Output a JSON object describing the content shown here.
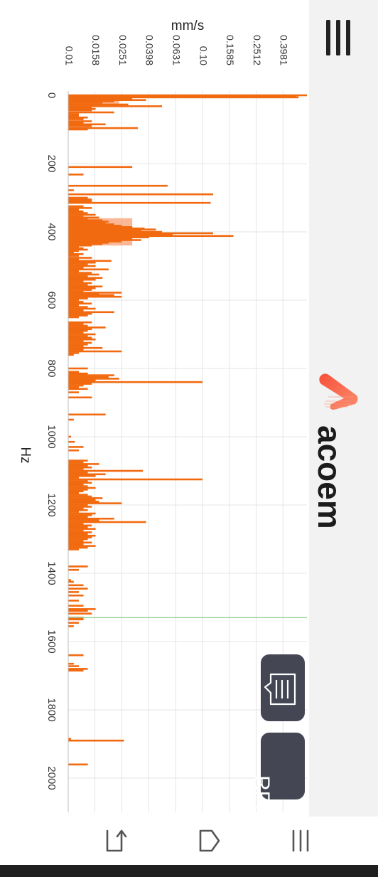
{
  "app": {
    "brand": "acoem"
  },
  "buttons": {
    "rpm_label": "RPM"
  },
  "icons": {
    "menu": "menu-icon",
    "note": "note-icon",
    "nav_back": "back-icon",
    "nav_home": "home-icon",
    "nav_recent": "recent-apps-icon"
  },
  "colors": {
    "bar": "#f26a10",
    "band": "#f8a073",
    "grid": "#e4e4e4",
    "cursor": "#8fcf8f",
    "pill": "#444654"
  },
  "chart_data": {
    "type": "bar",
    "orientation": "horizontal",
    "xlabel": "Hz",
    "ylabel": "mm/s",
    "x_ticks": [
      0,
      200,
      400,
      600,
      800,
      1000,
      1200,
      1400,
      1600,
      1800,
      2000
    ],
    "y_ticks": [
      "0.01",
      "0.0158",
      "0.0251",
      "0.0398",
      "0.0631",
      "0.10",
      "0.1585",
      "0.2512",
      "0.3981"
    ],
    "y_tick_values": [
      0.01,
      0.0158,
      0.0251,
      0.0398,
      0.0631,
      0.1,
      0.1585,
      0.2512,
      0.3981
    ],
    "xlim": [
      0,
      2100
    ],
    "ylim": [
      0.01,
      0.6
    ],
    "y_scale": "log",
    "cursor_hz": 1530,
    "series": [
      {
        "points": [
          [
            0,
            0.6
          ],
          [
            3,
            0.5
          ],
          [
            6,
            0.52
          ],
          [
            10,
            0.03
          ],
          [
            14,
            0.038
          ],
          [
            18,
            0.022
          ],
          [
            22,
            0.018
          ],
          [
            27,
            0.028
          ],
          [
            32,
            0.05
          ],
          [
            36,
            0.015
          ],
          [
            40,
            0.016
          ],
          [
            44,
            0.015
          ],
          [
            50,
            0.022
          ],
          [
            55,
            0.012
          ],
          [
            60,
            0.012
          ],
          [
            65,
            0.014
          ],
          [
            70,
            0.013
          ],
          [
            76,
            0.015
          ],
          [
            80,
            0.013
          ],
          [
            85,
            0.019
          ],
          [
            90,
            0.015
          ],
          [
            96,
            0.033
          ],
          [
            100,
            0.014
          ],
          [
            210,
            0.03
          ],
          [
            232,
            0.013
          ],
          [
            265,
            0.055
          ],
          [
            278,
            0.011
          ],
          [
            290,
            0.12
          ],
          [
            300,
            0.014
          ],
          [
            305,
            0.015
          ],
          [
            310,
            0.015
          ],
          [
            315,
            0.115
          ],
          [
            325,
            0.013
          ],
          [
            330,
            0.015
          ],
          [
            335,
            0.012
          ],
          [
            340,
            0.013
          ],
          [
            345,
            0.014
          ],
          [
            350,
            0.016
          ],
          [
            355,
            0.013
          ],
          [
            358,
            0.017
          ],
          [
            362,
            0.014
          ],
          [
            366,
            0.018
          ],
          [
            370,
            0.02
          ],
          [
            374,
            0.019
          ],
          [
            378,
            0.022
          ],
          [
            382,
            0.025
          ],
          [
            386,
            0.03
          ],
          [
            390,
            0.037
          ],
          [
            393,
            0.045
          ],
          [
            397,
            0.035
          ],
          [
            400,
            0.05
          ],
          [
            404,
            0.12
          ],
          [
            408,
            0.06
          ],
          [
            412,
            0.17
          ],
          [
            416,
            0.04
          ],
          [
            420,
            0.03
          ],
          [
            424,
            0.035
          ],
          [
            428,
            0.025
          ],
          [
            432,
            0.02
          ],
          [
            436,
            0.018
          ],
          [
            440,
            0.015
          ],
          [
            444,
            0.012
          ],
          [
            448,
            0.013
          ],
          [
            452,
            0.014
          ],
          [
            456,
            0.012
          ],
          [
            460,
            0.011
          ],
          [
            465,
            0.013
          ],
          [
            470,
            0.012
          ],
          [
            476,
            0.015
          ],
          [
            480,
            0.012
          ],
          [
            485,
            0.021
          ],
          [
            490,
            0.016
          ],
          [
            495,
            0.014
          ],
          [
            500,
            0.016
          ],
          [
            505,
            0.013
          ],
          [
            510,
            0.02
          ],
          [
            515,
            0.012
          ],
          [
            520,
            0.015
          ],
          [
            525,
            0.017
          ],
          [
            530,
            0.014
          ],
          [
            535,
            0.018
          ],
          [
            540,
            0.016
          ],
          [
            545,
            0.013
          ],
          [
            550,
            0.015
          ],
          [
            555,
            0.014
          ],
          [
            560,
            0.018
          ],
          [
            565,
            0.016
          ],
          [
            570,
            0.015
          ],
          [
            575,
            0.013
          ],
          [
            578,
            0.025
          ],
          [
            582,
            0.017
          ],
          [
            585,
            0.022
          ],
          [
            590,
            0.025
          ],
          [
            595,
            0.014
          ],
          [
            600,
            0.012
          ],
          [
            605,
            0.013
          ],
          [
            610,
            0.015
          ],
          [
            615,
            0.012
          ],
          [
            620,
            0.014
          ],
          [
            625,
            0.016
          ],
          [
            630,
            0.013
          ],
          [
            635,
            0.022
          ],
          [
            640,
            0.015
          ],
          [
            645,
            0.014
          ],
          [
            650,
            0.012
          ],
          [
            665,
            0.015
          ],
          [
            670,
            0.013
          ],
          [
            675,
            0.014
          ],
          [
            680,
            0.019
          ],
          [
            685,
            0.015
          ],
          [
            690,
            0.014
          ],
          [
            695,
            0.013
          ],
          [
            700,
            0.016
          ],
          [
            705,
            0.014
          ],
          [
            710,
            0.015
          ],
          [
            715,
            0.016
          ],
          [
            720,
            0.013
          ],
          [
            725,
            0.015
          ],
          [
            730,
            0.014
          ],
          [
            735,
            0.013
          ],
          [
            740,
            0.018
          ],
          [
            745,
            0.013
          ],
          [
            750,
            0.025
          ],
          [
            755,
            0.012
          ],
          [
            760,
            0.011
          ],
          [
            800,
            0.014
          ],
          [
            810,
            0.012
          ],
          [
            815,
            0.014
          ],
          [
            820,
            0.022
          ],
          [
            825,
            0.02
          ],
          [
            830,
            0.024
          ],
          [
            835,
            0.016
          ],
          [
            840,
            0.1
          ],
          [
            845,
            0.015
          ],
          [
            850,
            0.013
          ],
          [
            855,
            0.012
          ],
          [
            860,
            0.014
          ],
          [
            870,
            0.012
          ],
          [
            885,
            0.015
          ],
          [
            935,
            0.019
          ],
          [
            950,
            0.011
          ],
          [
            1000,
            0.0105
          ],
          [
            1015,
            0.0112
          ],
          [
            1030,
            0.013
          ],
          [
            1040,
            0.012
          ],
          [
            1070,
            0.014
          ],
          [
            1075,
            0.013
          ],
          [
            1080,
            0.017
          ],
          [
            1085,
            0.014
          ],
          [
            1090,
            0.015
          ],
          [
            1095,
            0.013
          ],
          [
            1100,
            0.036
          ],
          [
            1105,
            0.014
          ],
          [
            1110,
            0.019
          ],
          [
            1115,
            0.016
          ],
          [
            1120,
            0.012
          ],
          [
            1125,
            0.1
          ],
          [
            1130,
            0.014
          ],
          [
            1135,
            0.015
          ],
          [
            1140,
            0.013
          ],
          [
            1145,
            0.014
          ],
          [
            1150,
            0.016
          ],
          [
            1155,
            0.014
          ],
          [
            1160,
            0.013
          ],
          [
            1165,
            0.012
          ],
          [
            1170,
            0.014
          ],
          [
            1175,
            0.015
          ],
          [
            1180,
            0.018
          ],
          [
            1185,
            0.016
          ],
          [
            1190,
            0.017
          ],
          [
            1195,
            0.025
          ],
          [
            1200,
            0.014
          ],
          [
            1205,
            0.015
          ],
          [
            1210,
            0.013
          ],
          [
            1215,
            0.014
          ],
          [
            1220,
            0.012
          ],
          [
            1225,
            0.016
          ],
          [
            1230,
            0.015
          ],
          [
            1235,
            0.014
          ],
          [
            1240,
            0.022
          ],
          [
            1245,
            0.017
          ],
          [
            1250,
            0.038
          ],
          [
            1255,
            0.013
          ],
          [
            1260,
            0.015
          ],
          [
            1265,
            0.014
          ],
          [
            1270,
            0.016
          ],
          [
            1275,
            0.013
          ],
          [
            1280,
            0.015
          ],
          [
            1285,
            0.014
          ],
          [
            1290,
            0.016
          ],
          [
            1295,
            0.015
          ],
          [
            1300,
            0.014
          ],
          [
            1305,
            0.013
          ],
          [
            1310,
            0.015
          ],
          [
            1315,
            0.013
          ],
          [
            1320,
            0.016
          ],
          [
            1325,
            0.014
          ],
          [
            1330,
            0.012
          ],
          [
            1380,
            0.014
          ],
          [
            1390,
            0.012
          ],
          [
            1420,
            0.0105
          ],
          [
            1425,
            0.011
          ],
          [
            1435,
            0.013
          ],
          [
            1445,
            0.014
          ],
          [
            1455,
            0.012
          ],
          [
            1465,
            0.013
          ],
          [
            1480,
            0.012
          ],
          [
            1495,
            0.013
          ],
          [
            1505,
            0.016
          ],
          [
            1510,
            0.014
          ],
          [
            1518,
            0.015
          ],
          [
            1530,
            0.013
          ],
          [
            1535,
            0.013
          ],
          [
            1545,
            0.012
          ],
          [
            1555,
            0.011
          ],
          [
            1640,
            0.013
          ],
          [
            1665,
            0.011
          ],
          [
            1672,
            0.012
          ],
          [
            1680,
            0.014
          ],
          [
            1685,
            0.013
          ],
          [
            1885,
            0.0105
          ],
          [
            1890,
            0.026
          ],
          [
            1960,
            0.014
          ]
        ]
      }
    ]
  }
}
